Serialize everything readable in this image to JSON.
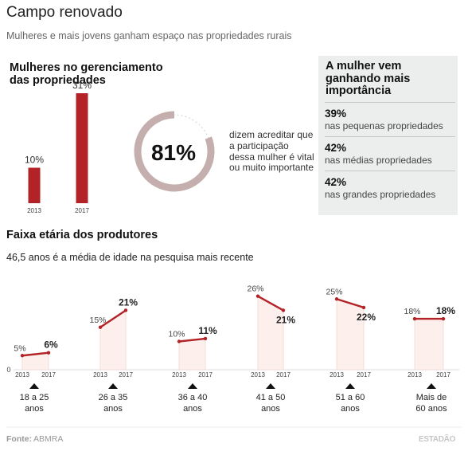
{
  "header": {
    "title": "Campo renovado",
    "subtitle": "Mulheres e mais jovens ganham espaço nas propriedades rurais"
  },
  "section_management": {
    "title": "Mulheres no gerenciamento das propriedades",
    "ring_value": "81%",
    "ring_fraction": 0.81,
    "ring_text": "dizem acreditar que a participação dessa mulher é vital ou muito importante"
  },
  "importance_box": {
    "title": "A mulher vem ganhando mais importância",
    "items": [
      {
        "value": "39%",
        "label": "nas pequenas propriedades"
      },
      {
        "value": "42%",
        "label": "nas médias propriedades"
      },
      {
        "value": "42%",
        "label": "nas grandes propriedades"
      }
    ]
  },
  "section_age": {
    "title": "Faixa etária dos produtores",
    "subtitle": "46,5 anos é a média de idade na pesquisa mais recente"
  },
  "footer": {
    "source_label": "Fonte:",
    "source_value": "ABMRA",
    "brand": "ESTADÃO"
  },
  "colors": {
    "accent": "#b22226",
    "ring": "#c4aeae",
    "area_fill": "#fdf0ec",
    "box_bg": "#eceeed"
  },
  "chart_data": [
    {
      "type": "bar",
      "categories": [
        "2013",
        "2017"
      ],
      "values": [
        10,
        31
      ],
      "value_labels": [
        "10%",
        "31%"
      ]
    },
    {
      "type": "line",
      "y_axis_zero_label": "0",
      "x": [
        "2013",
        "2017"
      ],
      "groups": [
        {
          "label_lines": [
            "18 a 25",
            "anos"
          ],
          "values": [
            5,
            6
          ],
          "value_labels": [
            "5%",
            "6%"
          ]
        },
        {
          "label_lines": [
            "26 a 35",
            "anos"
          ],
          "values": [
            15,
            21
          ],
          "value_labels": [
            "15%",
            "21%"
          ]
        },
        {
          "label_lines": [
            "36 a 40",
            "anos"
          ],
          "values": [
            10,
            11
          ],
          "value_labels": [
            "10%",
            "11%"
          ]
        },
        {
          "label_lines": [
            "41 a 50",
            "anos"
          ],
          "values": [
            26,
            21
          ],
          "value_labels": [
            "26%",
            "21%"
          ]
        },
        {
          "label_lines": [
            "51 a 60",
            "anos"
          ],
          "values": [
            25,
            22
          ],
          "value_labels": [
            "25%",
            "22%"
          ]
        },
        {
          "label_lines": [
            "Mais de",
            "60 anos"
          ],
          "values": [
            18,
            18
          ],
          "value_labels": [
            "18%",
            "18%"
          ]
        }
      ]
    }
  ]
}
